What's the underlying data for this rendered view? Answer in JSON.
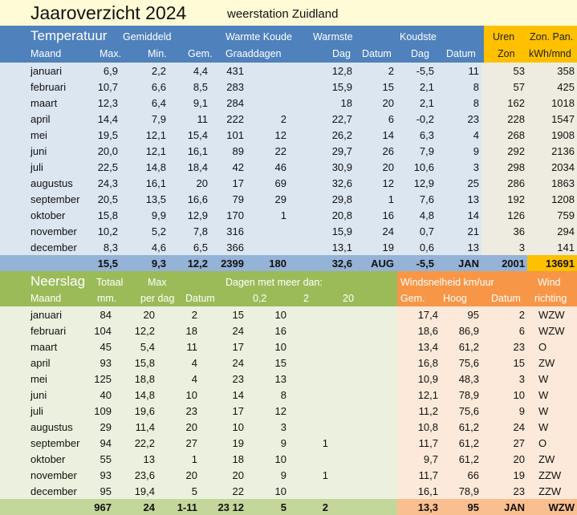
{
  "title": "Jaaroverzicht 2024",
  "subtitle": "weerstation Zuidland",
  "colors": {
    "blue": "#4f81bd",
    "blue_light": "#dce6f1",
    "blue_total": "#95b3d7",
    "gold": "#ffc000",
    "beige": "#eeece1",
    "green": "#9bbb59",
    "green_light": "#ebf1de",
    "green_total": "#c4d79b",
    "orange": "#f79646",
    "orange_light": "#fde9d9",
    "orange_total": "#fabf8f"
  },
  "temperature": {
    "header1": {
      "section": "Temperatuur",
      "avg": "Gemiddeld",
      "degree_days": "Warmte Koude",
      "warmest": "Warmste",
      "coldest": "Koudste",
      "sun_hours": "Uren",
      "solar": "Zon. Pan."
    },
    "header2": [
      "Maand",
      "Max.",
      "Min.",
      "Gem.",
      "Graaddagen",
      "Dag",
      "Datum",
      "Dag",
      "Datum",
      "Zon",
      "kWh/mnd"
    ],
    "rows": [
      [
        "januari",
        "6,9",
        "2,2",
        "4,4",
        "431",
        "",
        "12,8",
        "2",
        "-5,5",
        "11",
        "53",
        "358"
      ],
      [
        "februari",
        "10,7",
        "6,6",
        "8,5",
        "283",
        "",
        "15,9",
        "15",
        "2,1",
        "8",
        "57",
        "425"
      ],
      [
        "maart",
        "12,3",
        "6,4",
        "9,1",
        "284",
        "",
        "18",
        "20",
        "2,1",
        "8",
        "162",
        "1018"
      ],
      [
        "april",
        "14,4",
        "7,9",
        "11",
        "222",
        "2",
        "22,7",
        "6",
        "-0,2",
        "23",
        "228",
        "1547"
      ],
      [
        "mei",
        "19,5",
        "12,1",
        "15,4",
        "101",
        "12",
        "26,2",
        "14",
        "6,3",
        "4",
        "268",
        "1908"
      ],
      [
        "juni",
        "20,0",
        "12,1",
        "16,1",
        "89",
        "22",
        "29,7",
        "26",
        "7,9",
        "9",
        "292",
        "2136"
      ],
      [
        "juli",
        "22,5",
        "14,8",
        "18,4",
        "42",
        "46",
        "30,9",
        "20",
        "10,6",
        "3",
        "298",
        "2034"
      ],
      [
        "augustus",
        "24,3",
        "16,1",
        "20",
        "17",
        "69",
        "32,6",
        "12",
        "12,9",
        "25",
        "286",
        "1863"
      ],
      [
        "september",
        "20,5",
        "13,5",
        "16,6",
        "79",
        "29",
        "29,8",
        "1",
        "7,6",
        "13",
        "192",
        "1208"
      ],
      [
        "oktober",
        "15,8",
        "9,9",
        "12,9",
        "170",
        "1",
        "20,8",
        "16",
        "4,8",
        "14",
        "126",
        "759"
      ],
      [
        "november",
        "10,2",
        "5,2",
        "7,8",
        "316",
        "",
        "15,9",
        "24",
        "0,7",
        "21",
        "36",
        "294"
      ],
      [
        "december",
        "8,3",
        "4,6",
        "6,5",
        "366",
        "",
        "13,1",
        "19",
        "0,6",
        "13",
        "3",
        "141"
      ]
    ],
    "total": [
      "",
      "15,5",
      "9,3",
      "12,2",
      "2399",
      "180",
      "32,6",
      "AUG",
      "-5,5",
      "JAN",
      "2001",
      "13691"
    ]
  },
  "precipitation": {
    "header1": {
      "section": "Neerslag",
      "total": "Totaal",
      "max": "Max",
      "days": "Dagen met meer dan:",
      "wind_speed": "Windsnelheid km/uur",
      "wind": "Wind"
    },
    "header2": [
      "Maand",
      "mm.",
      "per dag",
      "Datum",
      "0,2",
      "2",
      "20",
      "Gem.",
      "Hoog",
      "Datum",
      "richting"
    ],
    "rows": [
      [
        "januari",
        "84",
        "20",
        "2",
        "15",
        "10",
        "",
        "17,4",
        "95",
        "2",
        "WZW"
      ],
      [
        "februari",
        "104",
        "12,2",
        "18",
        "24",
        "16",
        "",
        "18,6",
        "86,9",
        "6",
        "WZW"
      ],
      [
        "maart",
        "45",
        "5,4",
        "11",
        "17",
        "10",
        "",
        "13,4",
        "61,2",
        "23",
        "O"
      ],
      [
        "april",
        "93",
        "15,8",
        "4",
        "24",
        "15",
        "",
        "16,8",
        "75,6",
        "15",
        "ZW"
      ],
      [
        "mei",
        "125",
        "18,8",
        "4",
        "23",
        "13",
        "",
        "10,9",
        "48,3",
        "3",
        "W"
      ],
      [
        "juni",
        "40",
        "14,8",
        "10",
        "14",
        "8",
        "",
        "12,1",
        "78,9",
        "10",
        "W"
      ],
      [
        "juli",
        "109",
        "19,6",
        "23",
        "17",
        "12",
        "",
        "11,2",
        "75,6",
        "9",
        "W"
      ],
      [
        "augustus",
        "29",
        "11,4",
        "20",
        "10",
        "3",
        "",
        "10,8",
        "61,2",
        "24",
        "W"
      ],
      [
        "september",
        "94",
        "22,2",
        "27",
        "19",
        "9",
        "1",
        "11,7",
        "61,2",
        "27",
        "O"
      ],
      [
        "oktober",
        "55",
        "13",
        "1",
        "18",
        "10",
        "",
        "9,7",
        "61,2",
        "20",
        "ZW"
      ],
      [
        "november",
        "93",
        "23,6",
        "20",
        "20",
        "9",
        "1",
        "11,7",
        "66",
        "19",
        "ZZW"
      ],
      [
        "december",
        "95",
        "19,4",
        "5",
        "22",
        "10",
        "",
        "16,1",
        "78,9",
        "23",
        "ZZW"
      ]
    ],
    "total": [
      "",
      "967",
      "24",
      "1-11",
      "23 12",
      "5",
      "2",
      "13,3",
      "95",
      "JAN",
      "WZW"
    ]
  }
}
